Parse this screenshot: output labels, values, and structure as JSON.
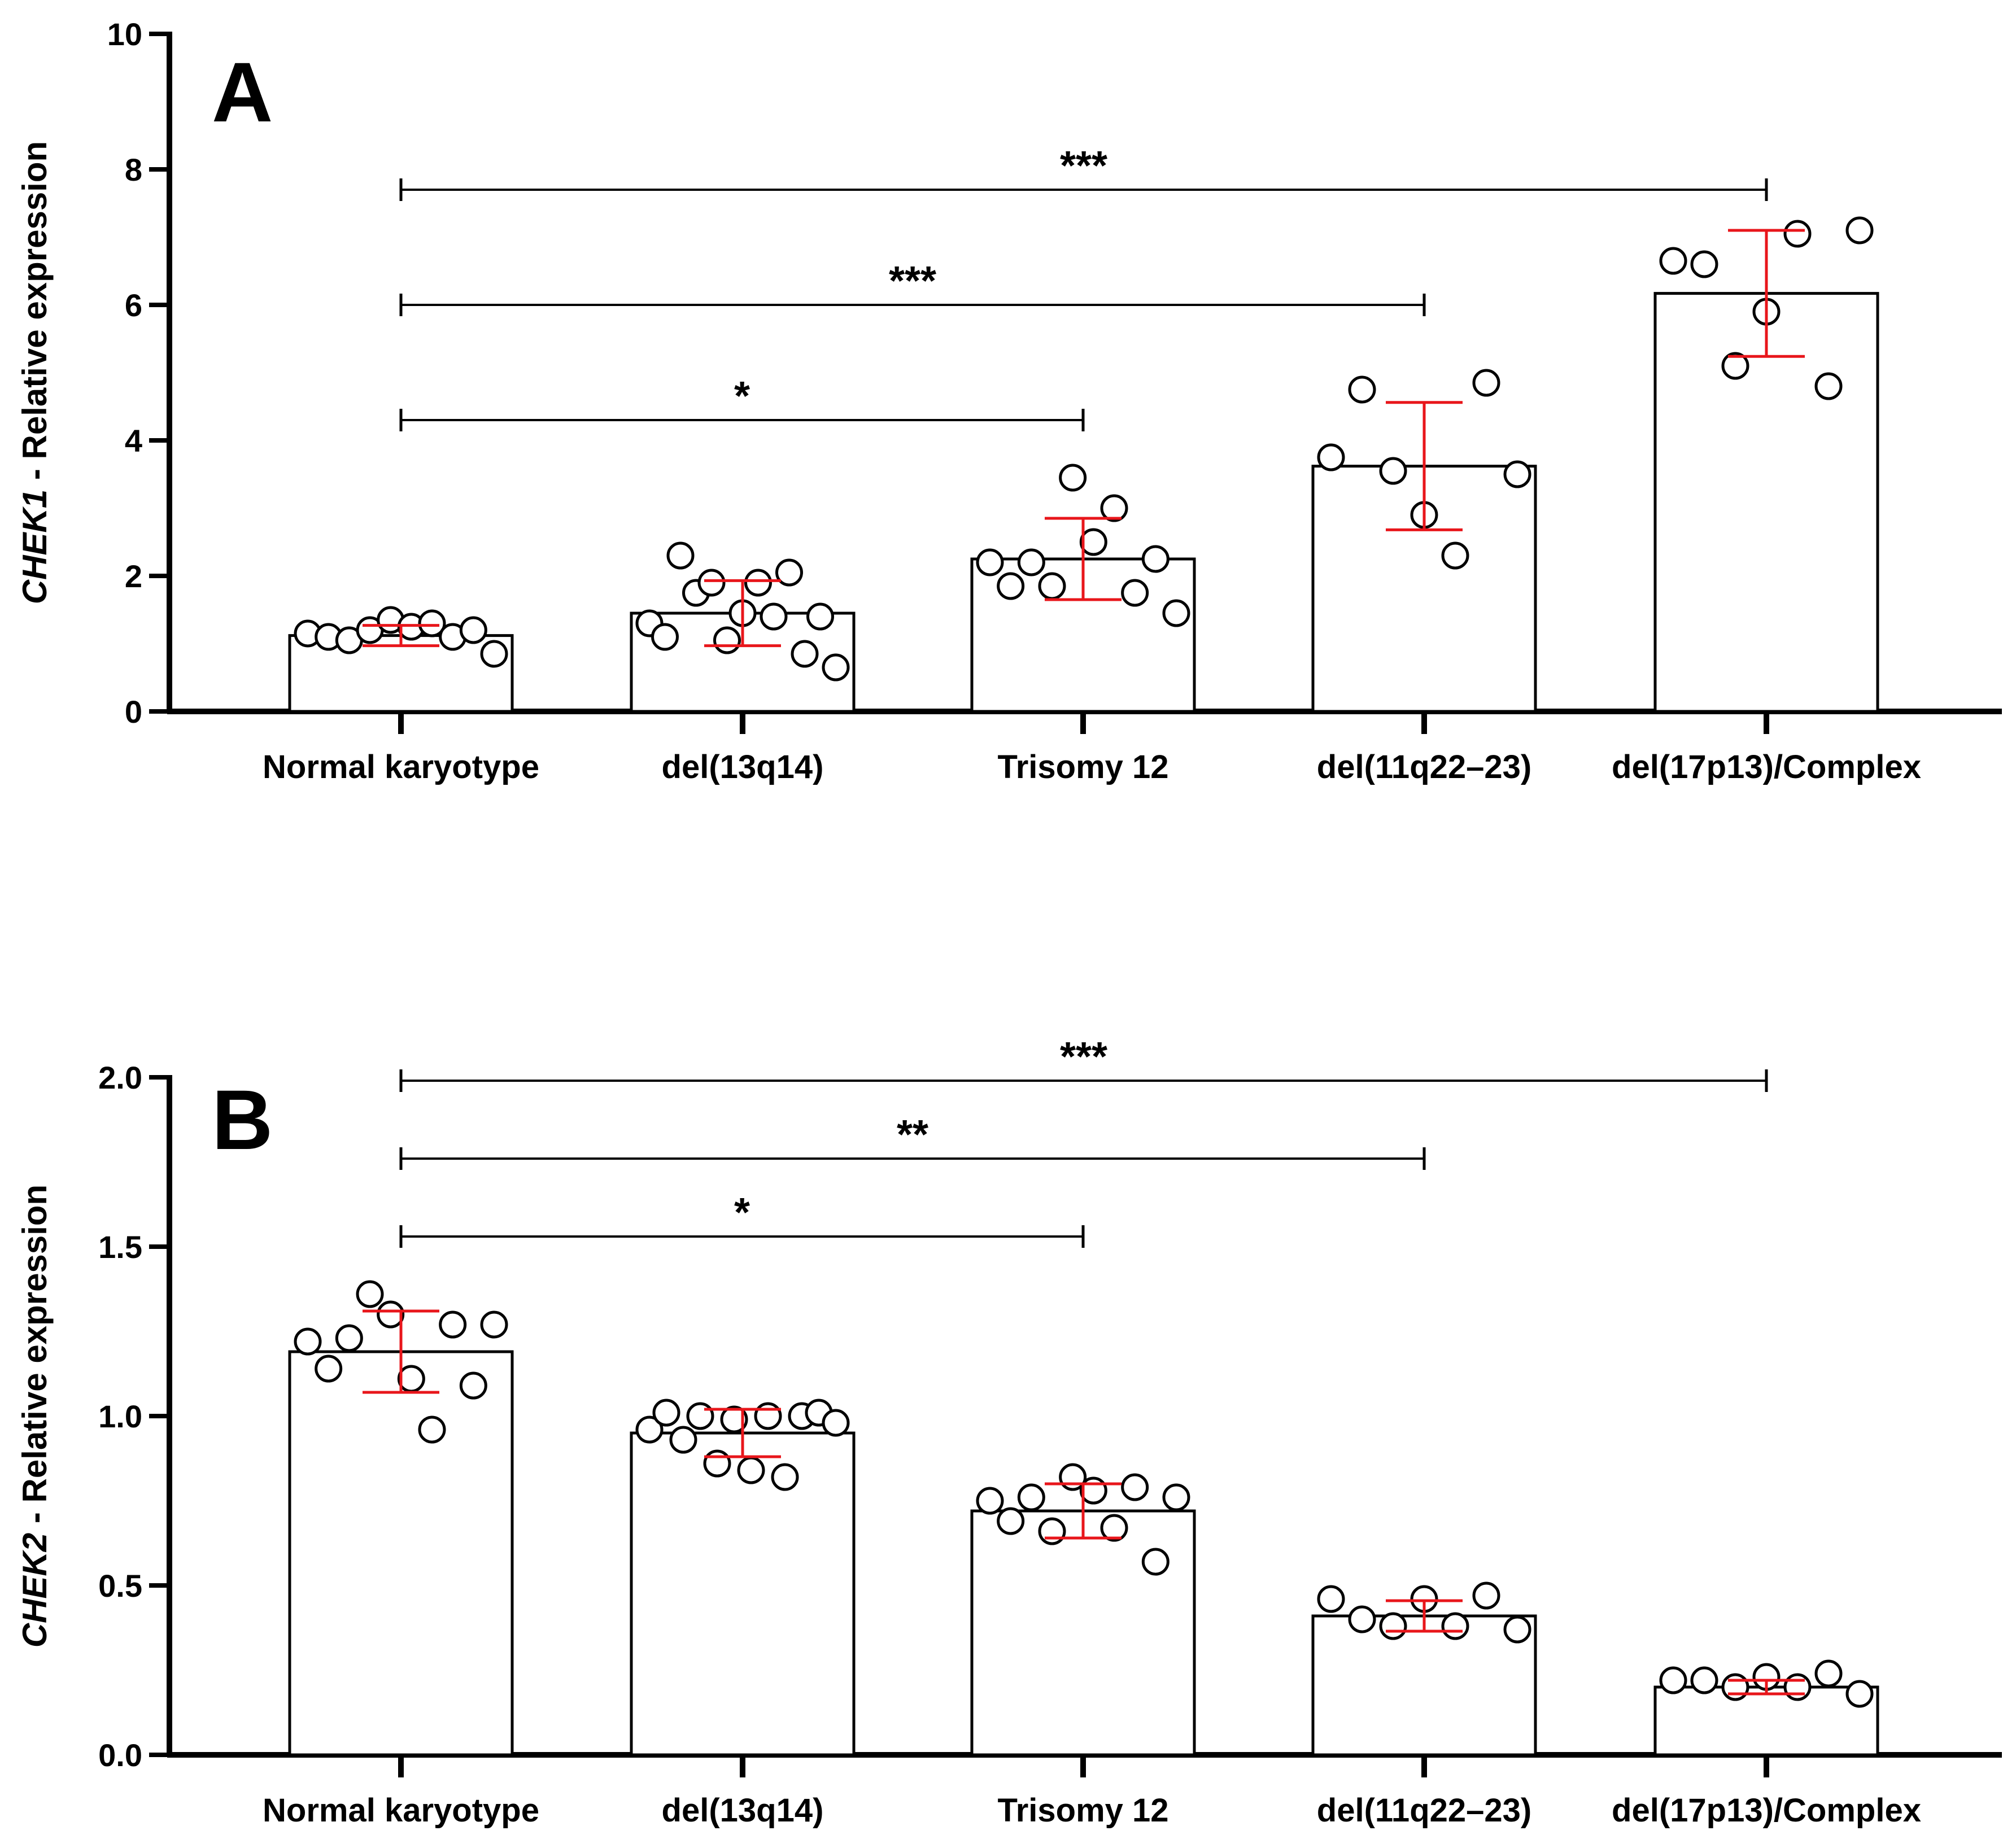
{
  "chart_data": [
    {
      "panel_label": "A",
      "type": "bar",
      "ylabel_italic": "CHEK1",
      "ylabel_rest": " - Relative expression",
      "categories": [
        "Normal karyotype",
        "del(13q14)",
        "Trisomy 12",
        "del(11q22–23)",
        "del(17p13)/Complex"
      ],
      "values": [
        1.12,
        1.45,
        2.25,
        3.62,
        6.17
      ],
      "errors": [
        0.15,
        0.48,
        0.6,
        0.94,
        0.93
      ],
      "ylim": [
        0,
        10
      ],
      "yticks": [
        0,
        2,
        4,
        6,
        8,
        10
      ],
      "ytick_labels": [
        "0",
        "2",
        "4",
        "6",
        "8",
        "10"
      ],
      "points": [
        [
          1.15,
          1.1,
          1.05,
          1.2,
          1.35,
          1.25,
          1.3,
          1.1,
          1.2,
          0.85
        ],
        [
          1.3,
          1.1,
          2.3,
          1.75,
          1.9,
          1.05,
          1.45,
          1.9,
          1.4,
          2.05,
          0.85,
          1.4,
          0.65
        ],
        [
          2.2,
          1.85,
          2.2,
          1.85,
          3.45,
          2.5,
          3.0,
          1.75,
          2.25,
          1.45
        ],
        [
          3.75,
          4.75,
          3.55,
          2.9,
          2.3,
          4.85,
          3.5
        ],
        [
          6.65,
          6.6,
          5.1,
          5.9,
          7.05,
          4.8,
          7.1
        ]
      ],
      "comparisons": [
        {
          "from": 0,
          "to": 2,
          "y": 4.3,
          "label": "*"
        },
        {
          "from": 0,
          "to": 3,
          "y": 6.0,
          "label": "***"
        },
        {
          "from": 0,
          "to": 4,
          "y": 7.7,
          "label": "***"
        }
      ]
    },
    {
      "panel_label": "B",
      "type": "bar",
      "ylabel_italic": "CHEK2",
      "ylabel_rest": " - Relative expression",
      "categories": [
        "Normal karyotype",
        "del(13q14)",
        "Trisomy 12",
        "del(11q22–23)",
        "del(17p13)/Complex"
      ],
      "values": [
        1.19,
        0.95,
        0.72,
        0.41,
        0.2
      ],
      "errors": [
        0.12,
        0.07,
        0.08,
        0.045,
        0.02
      ],
      "ylim": [
        0,
        2
      ],
      "yticks": [
        0,
        0.5,
        1.0,
        1.5,
        2.0
      ],
      "ytick_labels": [
        "0.0",
        "0.5",
        "1.0",
        "1.5",
        "2.0"
      ],
      "points": [
        [
          1.22,
          1.14,
          1.23,
          1.36,
          1.3,
          1.11,
          0.96,
          1.27,
          1.09,
          1.27
        ],
        [
          0.96,
          1.01,
          0.93,
          1.0,
          0.86,
          0.99,
          0.84,
          1.0,
          0.82,
          1.0,
          1.01,
          0.98
        ],
        [
          0.75,
          0.69,
          0.76,
          0.66,
          0.82,
          0.78,
          0.67,
          0.79,
          0.57,
          0.76
        ],
        [
          0.46,
          0.4,
          0.38,
          0.46,
          0.38,
          0.47,
          0.37
        ],
        [
          0.22,
          0.22,
          0.2,
          0.23,
          0.2,
          0.24,
          0.18
        ]
      ],
      "comparisons": [
        {
          "from": 0,
          "to": 2,
          "y": 1.53,
          "label": "*"
        },
        {
          "from": 0,
          "to": 3,
          "y": 1.76,
          "label": "**"
        },
        {
          "from": 0,
          "to": 4,
          "y": 1.99,
          "label": "***"
        }
      ]
    }
  ],
  "colors": {
    "axis": "#000000",
    "bar_fill": "#ffffff",
    "error_bar": "#e8161b",
    "point_stroke": "#000000"
  }
}
